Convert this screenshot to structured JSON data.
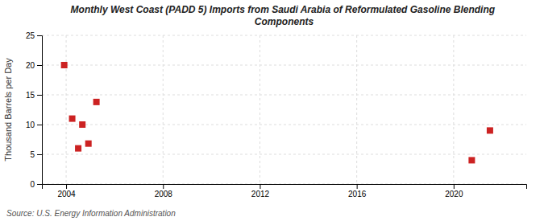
{
  "chart_data": {
    "type": "scatter",
    "title": "Monthly West Coast (PADD 5) Imports from Saudi Arabia of Reformulated Gasoline Blending\nComponents",
    "y_label": "Thousand Barrels per Day",
    "annotations": [
      "Source: U.S. Energy Information Administration"
    ],
    "x": [
      2003.92,
      2004.25,
      2004.5,
      2004.67,
      2004.92,
      2005.25,
      2020.75,
      2021.5
    ],
    "values": [
      20.0,
      11.0,
      6.0,
      10.0,
      6.8,
      13.8,
      4.0,
      9.0
    ],
    "color": "#cc2222",
    "marker": "square",
    "xlim": [
      2003,
      2023
    ],
    "ylim": [
      0,
      25
    ],
    "xticks": [
      2004,
      2008,
      2012,
      2016,
      2020
    ],
    "yticks": [
      0,
      5,
      10,
      15,
      20,
      25
    ],
    "grid": true
  }
}
